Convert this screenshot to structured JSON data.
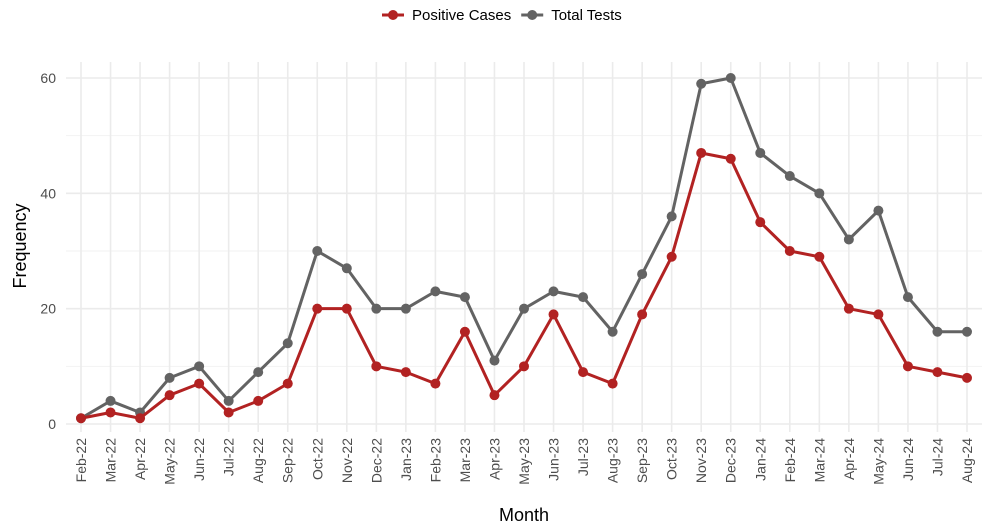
{
  "chart_data": {
    "type": "line",
    "title": "",
    "xlabel": "Month",
    "ylabel": "Frequency",
    "ylim": [
      0,
      62
    ],
    "yticks": [
      0,
      20,
      40,
      60
    ],
    "grid": true,
    "legend_position": "top",
    "categories": [
      "Feb-22",
      "Mar-22",
      "Apr-22",
      "May-22",
      "Jun-22",
      "Jul-22",
      "Aug-22",
      "Sep-22",
      "Oct-22",
      "Nov-22",
      "Dec-22",
      "Jan-23",
      "Feb-23",
      "Mar-23",
      "Apr-23",
      "May-23",
      "Jun-23",
      "Jul-23",
      "Aug-23",
      "Sep-23",
      "Oct-23",
      "Nov-23",
      "Dec-23",
      "Jan-24",
      "Feb-24",
      "Mar-24",
      "Apr-24",
      "May-24",
      "Jun-24",
      "Jul-24",
      "Aug-24"
    ],
    "series": [
      {
        "name": "Positive Cases",
        "color": "#B22222",
        "values": [
          1,
          2,
          1,
          5,
          7,
          2,
          4,
          7,
          20,
          20,
          10,
          9,
          7,
          16,
          5,
          10,
          19,
          9,
          7,
          19,
          29,
          47,
          46,
          35,
          30,
          29,
          20,
          19,
          10,
          9,
          8
        ]
      },
      {
        "name": "Total Tests",
        "color": "#636363",
        "values": [
          1,
          4,
          2,
          8,
          10,
          4,
          9,
          14,
          30,
          27,
          20,
          20,
          23,
          22,
          11,
          20,
          23,
          22,
          16,
          26,
          36,
          59,
          60,
          47,
          43,
          40,
          32,
          37,
          22,
          16,
          16
        ]
      }
    ]
  }
}
